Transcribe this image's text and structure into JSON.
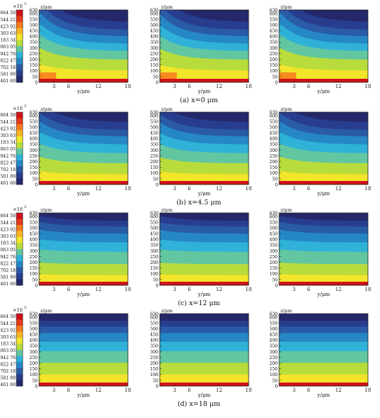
{
  "chart_data": {
    "type": "heatmap",
    "colorbar": {
      "multiplier": "×10",
      "exponent": "5",
      "ticks": [
        "1.664 50",
        "1.544 21",
        "1.423 92",
        "1.303 63",
        "1.183 34",
        "1.063 05",
        "0.942 76",
        "0.822 47",
        "0.702 18",
        "0.581 89",
        "0.461 60"
      ],
      "colors": [
        "#d0121a",
        "#e33b1b",
        "#f47a1f",
        "#f9b526",
        "#f3e52a",
        "#b8dc3c",
        "#62c6a1",
        "#2fb1d8",
        "#2687c5",
        "#2a5ba6",
        "#283d8e",
        "#24286b"
      ]
    },
    "axes": {
      "xlabel": "y/μm",
      "ylabel": "z/μm",
      "xticks": [
        3,
        6,
        12,
        18
      ],
      "xlim": [
        0,
        18
      ],
      "yticks": [
        0,
        50,
        100,
        150,
        200,
        250,
        300,
        350,
        400,
        450,
        500,
        550,
        600,
        630
      ],
      "ylim": [
        0,
        630
      ]
    },
    "rows": [
      {
        "caption": "(a) x=0 μm",
        "levels": [
          0.17,
          0.28,
          0.37,
          0.47,
          0.57,
          0.69,
          0.84,
          1.0
        ],
        "corner": 1
      },
      {
        "caption": "(b) x=4.5 μm",
        "levels": [
          0.14,
          0.25,
          0.34,
          0.45,
          0.57,
          0.71,
          0.86,
          1.0
        ],
        "corner": 0.6
      },
      {
        "caption": "(c) x=12 μm",
        "levels": [
          0.11,
          0.19,
          0.29,
          0.41,
          0.54,
          0.71,
          0.86,
          1.0
        ],
        "corner": 0.15
      },
      {
        "caption": "(d) x=18 μm",
        "levels": [
          0.1,
          0.18,
          0.27,
          0.39,
          0.52,
          0.68,
          0.84,
          1.0
        ],
        "corner": 0.0
      }
    ],
    "columns": 3
  }
}
